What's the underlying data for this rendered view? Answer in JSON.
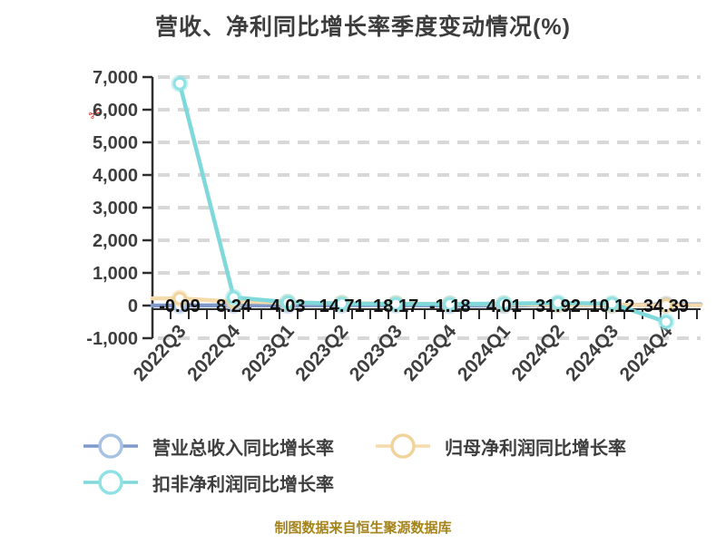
{
  "page": {
    "title": "营收、净利同比增长率季度变动情况(%)",
    "caption": "制图数据来自恒生聚源数据库"
  },
  "watermark": {
    "glyph": "✂",
    "color": "#ce2a2a"
  },
  "legend": {
    "items": [
      {
        "label": "营业总收入同比增长率",
        "line_color": "#7e99ca",
        "ring_color": "#a8c2e3"
      },
      {
        "label": "归母净利润同比增长率",
        "line_color": "#f5dbab",
        "ring_color": "#f0d49c"
      },
      {
        "label": "扣非净利润同比增长率",
        "line_color": "#7fd9db",
        "ring_color": "#8fe1e3"
      }
    ]
  },
  "chart_data": {
    "type": "line",
    "title": "营收、净利同比增长率季度变动情况(%)",
    "categories": [
      "2022Q3",
      "2022Q4",
      "2023Q1",
      "2023Q2",
      "2023Q3",
      "2023Q4",
      "2024Q1",
      "2024Q2",
      "2024Q3",
      "2024Q4"
    ],
    "y_ticks": [
      7000,
      6000,
      5000,
      4000,
      3000,
      2000,
      1000,
      0,
      -1000
    ],
    "ylim": [
      -1000,
      7000
    ],
    "grid": "dashed-horizontal",
    "legend_position": "bottom-left",
    "axis_color": "#2e2e2e",
    "grid_color": "#d8d8d8",
    "label_color": "#3e3e3e",
    "data_label_color": "#111111",
    "series": [
      {
        "name": "营业总收入同比增长率",
        "color": "#7e99ca",
        "marker_ring": "#a8c2e3",
        "values": [
          -0.09,
          8.24,
          4.03,
          14.71,
          18.17,
          -1.18,
          4.01,
          31.92,
          10.12,
          34.39
        ],
        "data_labels": [
          "-0.09",
          "8.24",
          "4.03",
          "14.71",
          "18.17",
          "-1.18",
          "4.01",
          "31.92",
          "10.12",
          "34.39"
        ],
        "extend_to_plot_edges": true,
        "values_are_estimates": false
      },
      {
        "name": "归母净利润同比增长率",
        "color": "#f5dbab",
        "marker_ring": "#f0d49c",
        "values": [
          220,
          120,
          90,
          70,
          60,
          50,
          40,
          30,
          20,
          10
        ],
        "extend_to_plot_edges": true,
        "values_are_estimates": true
      },
      {
        "name": "扣非净利润同比增长率",
        "color": "#7fd9db",
        "marker_ring": "#8fe1e3",
        "values": [
          6800,
          250,
          100,
          60,
          50,
          45,
          60,
          80,
          60,
          -500
        ],
        "extend_to_plot_edges": false,
        "values_are_estimates": true
      }
    ]
  }
}
